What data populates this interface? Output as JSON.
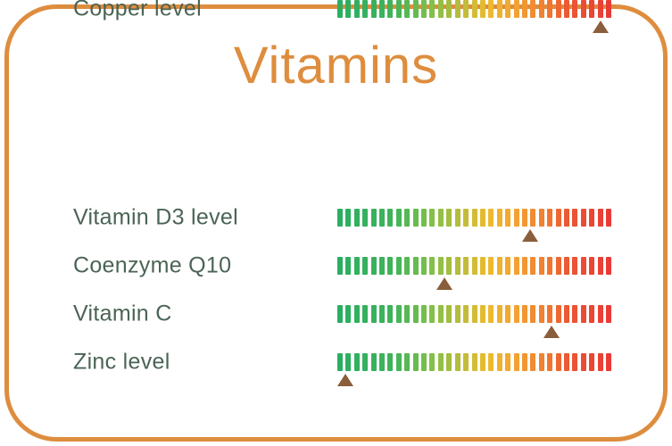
{
  "theme": {
    "background": "#FFFFFF",
    "accent_orange": "#DE8D3E",
    "label_green": "#4B6455",
    "marker_brown": "#8B5E3B"
  },
  "card": {
    "border_color": "#DE8D3E"
  },
  "chart_data": {
    "type": "bar",
    "subtype": "linear-gauge-with-marker",
    "title": "Vitamins",
    "title_color": "#DE8D3E",
    "categories": [
      "Vitamin D3 level",
      "Coenzyme Q10",
      "Vitamin C",
      "Zinc level",
      "Copper level"
    ],
    "values": [
      70.3,
      39.2,
      78.1,
      2.9,
      96.1
    ],
    "value_unit": "percent of gauge scale (left green end = 0, right red end = 100)",
    "xlim": [
      0,
      100
    ],
    "segments_per_bar": 33,
    "gradient_stops": [
      {
        "pos": 0.0,
        "color": "#2BAE61"
      },
      {
        "pos": 0.2,
        "color": "#3FB35A"
      },
      {
        "pos": 0.33,
        "color": "#7BC04A"
      },
      {
        "pos": 0.45,
        "color": "#B9BC3B"
      },
      {
        "pos": 0.55,
        "color": "#EDBB2E"
      },
      {
        "pos": 0.66,
        "color": "#F2A133"
      },
      {
        "pos": 0.76,
        "color": "#F07E31"
      },
      {
        "pos": 0.85,
        "color": "#EC5632"
      },
      {
        "pos": 1.0,
        "color": "#E93B36"
      }
    ],
    "marker_color": "#8B5E3B",
    "label_color": "#4B6455",
    "legend": "none",
    "grid": false
  }
}
